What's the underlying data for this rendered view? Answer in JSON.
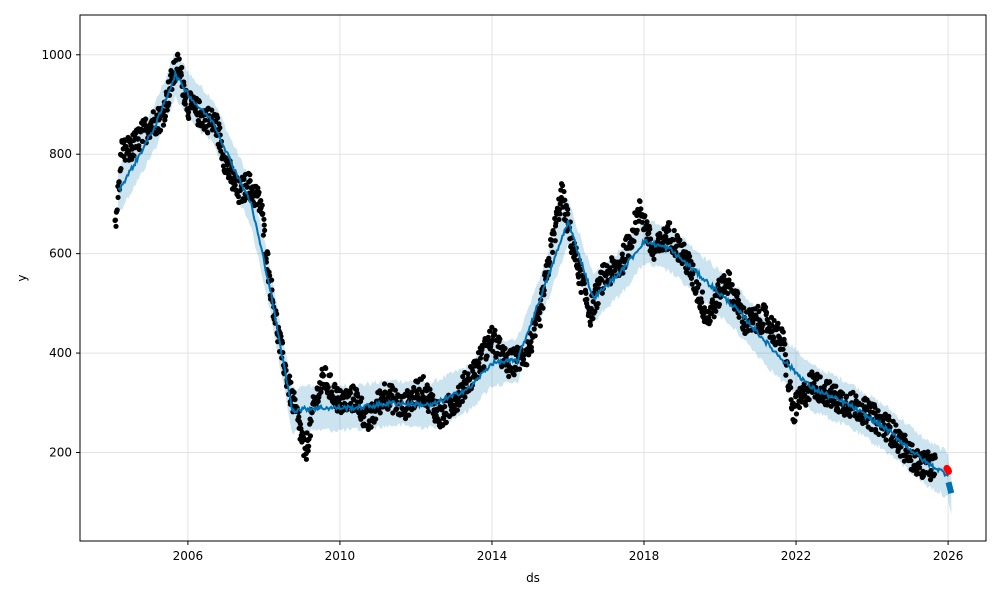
{
  "chart_data": {
    "type": "line",
    "title": "",
    "xlabel": "ds",
    "ylabel": "y",
    "x_is_date": true,
    "xlim": [
      "2003-03-01",
      "2026-12-31"
    ],
    "ylim": [
      22,
      1080
    ],
    "x_ticks": [
      {
        "value": "2006-01-01",
        "label": "2006"
      },
      {
        "value": "2010-01-01",
        "label": "2010"
      },
      {
        "value": "2014-01-01",
        "label": "2014"
      },
      {
        "value": "2018-01-01",
        "label": "2018"
      },
      {
        "value": "2022-01-01",
        "label": "2022"
      },
      {
        "value": "2026-01-01",
        "label": "2026"
      }
    ],
    "y_ticks": [
      200,
      400,
      600,
      800,
      1000
    ],
    "grid": true,
    "colors": {
      "observed": "#000000",
      "forecast": "#0072B2",
      "interval": "#0072B2",
      "highlight": "#ff0000"
    },
    "series": [
      {
        "role": "forecast",
        "points": [
          [
            "2004-03-01",
            725
          ],
          [
            "2004-09-01",
            790
          ],
          [
            "2005-03-01",
            860
          ],
          [
            "2005-09-01",
            960
          ],
          [
            "2006-03-01",
            905
          ],
          [
            "2006-09-01",
            865
          ],
          [
            "2007-03-01",
            780
          ],
          [
            "2007-09-01",
            700
          ],
          [
            "2008-03-01",
            530
          ],
          [
            "2008-06-01",
            420
          ],
          [
            "2008-10-01",
            285
          ],
          [
            "2009-06-01",
            290
          ],
          [
            "2010-06-01",
            290
          ],
          [
            "2011-06-01",
            300
          ],
          [
            "2012-06-01",
            295
          ],
          [
            "2013-06-01",
            330
          ],
          [
            "2014-01-01",
            380
          ],
          [
            "2014-09-01",
            385
          ],
          [
            "2015-06-01",
            540
          ],
          [
            "2016-01-01",
            665
          ],
          [
            "2016-09-01",
            510
          ],
          [
            "2017-06-01",
            565
          ],
          [
            "2018-01-01",
            625
          ],
          [
            "2018-09-01",
            610
          ],
          [
            "2019-06-01",
            560
          ],
          [
            "2020-06-01",
            490
          ],
          [
            "2021-06-01",
            405
          ],
          [
            "2022-06-01",
            330
          ],
          [
            "2023-06-01",
            295
          ],
          [
            "2024-06-01",
            245
          ],
          [
            "2025-06-01",
            180
          ],
          [
            "2026-01-01",
            155
          ]
        ]
      },
      {
        "role": "forecast_extension",
        "points": [
          [
            "2026-01-05",
            140
          ],
          [
            "2026-02-01",
            118
          ]
        ]
      },
      {
        "role": "observed",
        "points": [
          [
            "2004-02-01",
            645
          ],
          [
            "2004-04-01",
            800
          ],
          [
            "2004-07-01",
            810
          ],
          [
            "2004-10-01",
            835
          ],
          [
            "2005-01-01",
            860
          ],
          [
            "2005-05-01",
            875
          ],
          [
            "2005-08-01",
            950
          ],
          [
            "2005-10-01",
            980
          ],
          [
            "2006-01-01",
            900
          ],
          [
            "2006-06-01",
            875
          ],
          [
            "2006-10-01",
            860
          ],
          [
            "2007-01-01",
            780
          ],
          [
            "2007-05-01",
            720
          ],
          [
            "2007-08-01",
            740
          ],
          [
            "2007-12-01",
            700
          ],
          [
            "2008-03-01",
            540
          ],
          [
            "2008-06-01",
            420
          ],
          [
            "2008-09-01",
            330
          ],
          [
            "2008-12-01",
            260
          ],
          [
            "2009-02-01",
            195
          ],
          [
            "2009-05-01",
            300
          ],
          [
            "2009-08-01",
            350
          ],
          [
            "2010-01-01",
            300
          ],
          [
            "2010-06-01",
            310
          ],
          [
            "2010-10-01",
            260
          ],
          [
            "2011-03-01",
            320
          ],
          [
            "2011-09-01",
            290
          ],
          [
            "2012-03-01",
            330
          ],
          [
            "2012-09-01",
            270
          ],
          [
            "2013-03-01",
            320
          ],
          [
            "2013-08-01",
            370
          ],
          [
            "2014-01-01",
            430
          ],
          [
            "2014-06-01",
            375
          ],
          [
            "2014-12-01",
            400
          ],
          [
            "2015-04-01",
            470
          ],
          [
            "2015-08-01",
            620
          ],
          [
            "2015-11-01",
            720
          ],
          [
            "2016-03-01",
            600
          ],
          [
            "2016-08-01",
            480
          ],
          [
            "2016-12-01",
            550
          ],
          [
            "2017-06-01",
            580
          ],
          [
            "2017-12-01",
            690
          ],
          [
            "2018-04-01",
            600
          ],
          [
            "2018-09-01",
            640
          ],
          [
            "2019-03-01",
            580
          ],
          [
            "2019-09-01",
            470
          ],
          [
            "2020-03-01",
            550
          ],
          [
            "2020-09-01",
            460
          ],
          [
            "2021-03-01",
            470
          ],
          [
            "2021-09-01",
            420
          ],
          [
            "2021-12-01",
            280
          ],
          [
            "2022-06-01",
            340
          ],
          [
            "2023-01-01",
            310
          ],
          [
            "2023-09-01",
            290
          ],
          [
            "2024-06-01",
            250
          ],
          [
            "2025-03-01",
            180
          ],
          [
            "2025-09-01",
            170
          ]
        ]
      },
      {
        "role": "highlight",
        "points": [
          [
            "2025-12-20",
            168
          ],
          [
            "2026-01-01",
            165
          ],
          [
            "2026-01-05",
            162
          ]
        ]
      }
    ],
    "interval_halfwidth": 45
  }
}
